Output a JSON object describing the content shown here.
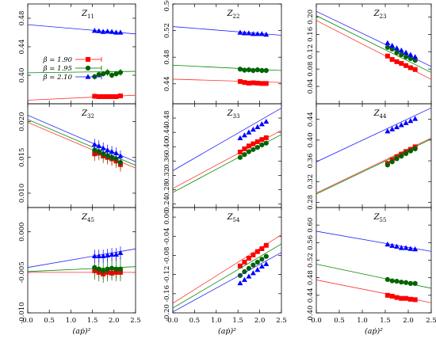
{
  "figure": {
    "xlabel": "(aṗ)²",
    "legend": [
      "β = 1.90",
      "β = 1.95",
      "β = 2.10"
    ]
  },
  "colors": {
    "b190": "#ff0000",
    "b195": "#006400",
    "b210": "#0000ff",
    "fit190": "#ff3030",
    "fit195": "#008800",
    "fit210": "#2020ff"
  },
  "chart_data": [
    {
      "type": "scatter",
      "title": "Z11",
      "title_main": "Z",
      "title_sub": "11",
      "xlim": [
        0,
        2.5
      ],
      "ylim": [
        0.36,
        0.5
      ],
      "xticks": [
        "0.0",
        "0.5",
        "1.0",
        "1.5",
        "2.0",
        "2.5"
      ],
      "xtick_values": [
        0,
        0.5,
        1,
        1.5,
        2,
        2.5
      ],
      "yticks": [
        "0.40",
        "0.44",
        "0.48"
      ],
      "ytick_values": [
        0.4,
        0.44,
        0.48
      ],
      "x": [
        1.55,
        1.65,
        1.75,
        1.85,
        1.95,
        2.05,
        2.15
      ],
      "series": [
        {
          "name": "β = 1.90",
          "values": [
            0.3705,
            0.37,
            0.37,
            0.37,
            0.37,
            0.37,
            0.371
          ],
          "errors": [
            0.002,
            0.002,
            0.002,
            0.002,
            0.002,
            0.002,
            0.003
          ],
          "fit": [
            0.365,
            0.372
          ]
        },
        {
          "name": "β = 1.95",
          "values": [
            0.398,
            0.401,
            0.402,
            0.404,
            0.4,
            0.402,
            0.404
          ],
          "errors": [
            0.004,
            0.004,
            0.004,
            0.005,
            0.004,
            0.004,
            0.005
          ],
          "fit": [
            0.4035,
            0.4055
          ]
        },
        {
          "name": "β = 2.10",
          "values": [
            0.4625,
            0.462,
            0.461,
            0.4615,
            0.461,
            0.46,
            0.46
          ],
          "errors": [
            0.003,
            0.003,
            0.003,
            0.003,
            0.003,
            0.003,
            0.003
          ],
          "fit": [
            0.471,
            0.458
          ]
        }
      ]
    },
    {
      "type": "scatter",
      "title": "Z22",
      "title_main": "Z",
      "title_sub": "22",
      "xlim": [
        0,
        2.5
      ],
      "ylim": [
        0.41,
        0.56
      ],
      "xticks": [
        "0.0",
        "0.5",
        "1.0",
        "1.5",
        "2.0",
        "2.5"
      ],
      "xtick_values": [
        0,
        0.5,
        1,
        1.5,
        2,
        2.5
      ],
      "yticks": [
        "0.44",
        "0.48",
        "0.52",
        "0.56"
      ],
      "ytick_values": [
        0.44,
        0.48,
        0.52,
        0.56
      ],
      "x": [
        1.55,
        1.65,
        1.75,
        1.85,
        1.95,
        2.05,
        2.15
      ],
      "series": [
        {
          "name": "β = 1.90",
          "values": [
            0.4435,
            0.442,
            0.441,
            0.4415,
            0.441,
            0.4405,
            0.4405
          ],
          "errors": [
            0.002,
            0.002,
            0.002,
            0.002,
            0.002,
            0.002,
            0.002
          ],
          "fit": [
            0.447,
            0.442
          ]
        },
        {
          "name": "β = 1.95",
          "values": [
            0.462,
            0.4605,
            0.461,
            0.46,
            0.461,
            0.46,
            0.46
          ],
          "errors": [
            0.004,
            0.004,
            0.004,
            0.004,
            0.004,
            0.004,
            0.004
          ],
          "fit": [
            0.468,
            0.46
          ]
        },
        {
          "name": "β = 2.10",
          "values": [
            0.517,
            0.516,
            0.516,
            0.515,
            0.515,
            0.515,
            0.514
          ],
          "errors": [
            0.003,
            0.003,
            0.003,
            0.003,
            0.003,
            0.003,
            0.003
          ],
          "fit": [
            0.526,
            0.513
          ]
        }
      ]
    },
    {
      "type": "scatter",
      "title": "Z23",
      "title_main": "Z",
      "title_sub": "23",
      "xlim": [
        0,
        2.5
      ],
      "ylim": [
        0.0,
        0.23
      ],
      "xticks": [
        "0.0",
        "0.5",
        "1.0",
        "1.5",
        "2.0",
        "2.5"
      ],
      "xtick_values": [
        0,
        0.5,
        1,
        1.5,
        2,
        2.5
      ],
      "yticks": [
        "0.04",
        "0.08",
        "0.12",
        "0.16",
        "0.20"
      ],
      "ytick_values": [
        0.04,
        0.08,
        0.12,
        0.16,
        0.2
      ],
      "x": [
        1.55,
        1.65,
        1.75,
        1.85,
        1.95,
        2.05,
        2.15
      ],
      "series": [
        {
          "name": "β = 1.90",
          "values": [
            0.11,
            0.102,
            0.097,
            0.093,
            0.088,
            0.083,
            0.079
          ],
          "errors": [
            0.003,
            0.003,
            0.003,
            0.003,
            0.003,
            0.003,
            0.003
          ],
          "fit": [
            0.192,
            0.056
          ]
        },
        {
          "name": "β = 1.95",
          "values": [
            0.13,
            0.126,
            0.118,
            0.113,
            0.108,
            0.104,
            0.1
          ],
          "errors": [
            0.004,
            0.004,
            0.004,
            0.004,
            0.004,
            0.004,
            0.004
          ],
          "fit": [
            0.203,
            0.072
          ]
        },
        {
          "name": "β = 2.10",
          "values": [
            0.14,
            0.134,
            0.128,
            0.123,
            0.118,
            0.113,
            0.108
          ],
          "errors": [
            0.003,
            0.003,
            0.003,
            0.003,
            0.003,
            0.003,
            0.003
          ],
          "fit": [
            0.213,
            0.086
          ]
        }
      ]
    },
    {
      "type": "scatter",
      "title": "Z32",
      "title_main": "Z",
      "title_sub": "32",
      "xlim": [
        0,
        2.5
      ],
      "ylim": [
        0.008,
        0.0225
      ],
      "xticks": [
        "0.0",
        "0.5",
        "1.0",
        "1.5",
        "2.0",
        "2.5"
      ],
      "xtick_values": [
        0,
        0.5,
        1,
        1.5,
        2,
        2.5
      ],
      "yticks": [
        "0.010",
        "0.015",
        "0.020"
      ],
      "ytick_values": [
        0.01,
        0.015,
        0.02
      ],
      "x": [
        1.55,
        1.65,
        1.75,
        1.85,
        1.95,
        2.05,
        2.15
      ],
      "series": [
        {
          "name": "β = 1.90",
          "values": [
            0.0155,
            0.0156,
            0.0152,
            0.015,
            0.0148,
            0.0145,
            0.014
          ],
          "errors": [
            0.001,
            0.001,
            0.001,
            0.001,
            0.001,
            0.001,
            0.001
          ],
          "fit": [
            0.0199,
            0.0135
          ]
        },
        {
          "name": "β = 1.95",
          "values": [
            0.016,
            0.0158,
            0.0155,
            0.0152,
            0.015,
            0.0148,
            0.0143
          ],
          "errors": [
            0.001,
            0.001,
            0.001,
            0.001,
            0.001,
            0.001,
            0.001
          ],
          "fit": [
            0.0203,
            0.0139
          ]
        },
        {
          "name": "β = 2.10",
          "values": [
            0.0168,
            0.0166,
            0.0163,
            0.016,
            0.0158,
            0.0156,
            0.0152
          ],
          "errors": [
            0.0008,
            0.0008,
            0.0008,
            0.0008,
            0.0008,
            0.0008,
            0.0008
          ],
          "fit": [
            0.0209,
            0.0144
          ]
        }
      ]
    },
    {
      "type": "scatter",
      "title": "Z33",
      "title_main": "Z",
      "title_sub": "33",
      "xlim": [
        0,
        2.5
      ],
      "ylim": [
        0.23,
        0.52
      ],
      "xticks": [
        "0.0",
        "0.5",
        "1.0",
        "1.5",
        "2.0",
        "2.5"
      ],
      "xtick_values": [
        0,
        0.5,
        1,
        1.5,
        2,
        2.5
      ],
      "yticks": [
        "0.24",
        "0.28",
        "0.32",
        "0.36",
        "0.40",
        "0.44",
        "0.48"
      ],
      "ytick_values": [
        0.24,
        0.28,
        0.32,
        0.36,
        0.4,
        0.44,
        0.48
      ],
      "x": [
        1.55,
        1.65,
        1.75,
        1.85,
        1.95,
        2.05,
        2.15
      ],
      "series": [
        {
          "name": "β = 1.90",
          "values": [
            0.385,
            0.394,
            0.402,
            0.408,
            0.414,
            0.42,
            0.425
          ],
          "errors": [
            0.004,
            0.004,
            0.004,
            0.004,
            0.004,
            0.004,
            0.004
          ],
          "fit": [
            0.283,
            0.446
          ]
        },
        {
          "name": "β = 1.95",
          "values": [
            0.37,
            0.378,
            0.386,
            0.392,
            0.398,
            0.405,
            0.41
          ],
          "errors": [
            0.004,
            0.004,
            0.004,
            0.004,
            0.004,
            0.004,
            0.004
          ],
          "fit": [
            0.272,
            0.434
          ]
        },
        {
          "name": "β = 2.10",
          "values": [
            0.424,
            0.432,
            0.44,
            0.448,
            0.455,
            0.463,
            0.47
          ],
          "errors": [
            0.004,
            0.004,
            0.004,
            0.004,
            0.004,
            0.004,
            0.004
          ],
          "fit": [
            0.333,
            0.508
          ]
        }
      ]
    },
    {
      "type": "scatter",
      "title": "Z44",
      "title_main": "Z",
      "title_sub": "44",
      "xlim": [
        0,
        2.5
      ],
      "ylim": [
        0.27,
        0.47
      ],
      "xticks": [
        "0.0",
        "0.5",
        "1.0",
        "1.5",
        "2.0",
        "2.5"
      ],
      "xtick_values": [
        0,
        0.5,
        1,
        1.5,
        2,
        2.5
      ],
      "yticks": [
        "0.28",
        "0.32",
        "0.36",
        "0.40",
        "0.44"
      ],
      "ytick_values": [
        0.28,
        0.32,
        0.36,
        0.4,
        0.44
      ],
      "x": [
        1.55,
        1.65,
        1.75,
        1.85,
        1.95,
        2.05,
        2.15
      ],
      "series": [
        {
          "name": "β = 1.90",
          "values": [
            0.355,
            0.362,
            0.368,
            0.373,
            0.378,
            0.382,
            0.387
          ],
          "errors": [
            0.003,
            0.003,
            0.003,
            0.003,
            0.003,
            0.003,
            0.003
          ],
          "fit": [
            0.298,
            0.404
          ]
        },
        {
          "name": "β = 1.95",
          "values": [
            0.352,
            0.358,
            0.364,
            0.369,
            0.374,
            0.379,
            0.383
          ],
          "errors": [
            0.003,
            0.003,
            0.003,
            0.003,
            0.003,
            0.003,
            0.003
          ],
          "fit": [
            0.296,
            0.402
          ]
        },
        {
          "name": "β = 2.10",
          "values": [
            0.417,
            0.421,
            0.425,
            0.429,
            0.433,
            0.437,
            0.441
          ],
          "errors": [
            0.003,
            0.003,
            0.003,
            0.003,
            0.003,
            0.003,
            0.003
          ],
          "fit": [
            0.358,
            0.462
          ]
        }
      ]
    },
    {
      "type": "scatter",
      "title": "Z45",
      "title_main": "Z",
      "title_sub": "45",
      "xlim": [
        0,
        2.5
      ],
      "ylim": [
        -0.01,
        0.003
      ],
      "xticks": [
        "0.0",
        "0.5",
        "1.0",
        "1.5",
        "2.0",
        "2.5"
      ],
      "xtick_values": [
        0,
        0.5,
        1,
        1.5,
        2,
        2.5
      ],
      "yticks": [
        "-0.010",
        "-0.005",
        "0.000"
      ],
      "ytick_values": [
        -0.01,
        -0.005,
        0.0
      ],
      "x": [
        1.55,
        1.65,
        1.75,
        1.85,
        1.95,
        2.05,
        2.15
      ],
      "series": [
        {
          "name": "β = 1.90",
          "values": [
            -0.0048,
            -0.005,
            -0.0052,
            -0.005,
            -0.0051,
            -0.005,
            -0.005
          ],
          "errors": [
            0.0007,
            0.0007,
            0.0007,
            0.0007,
            0.0007,
            0.0007,
            0.0007
          ],
          "fit": [
            -0.005,
            -0.005
          ]
        },
        {
          "name": "β = 1.95",
          "values": [
            -0.0044,
            -0.0046,
            -0.0048,
            -0.0046,
            -0.0045,
            -0.0046,
            -0.0046
          ],
          "errors": [
            0.0015,
            0.0015,
            0.0015,
            0.0015,
            0.0015,
            0.0015,
            0.0015
          ],
          "fit": [
            -0.0049,
            -0.0043
          ]
        },
        {
          "name": "β = 2.10",
          "values": [
            -0.003,
            -0.003,
            -0.003,
            -0.0029,
            -0.0028,
            -0.0028,
            -0.0026
          ],
          "errors": [
            0.0008,
            0.0008,
            0.0008,
            0.0008,
            0.0008,
            0.0008,
            0.0008
          ],
          "fit": [
            -0.0044,
            -0.0021
          ]
        }
      ]
    },
    {
      "type": "scatter",
      "title": "Z54",
      "title_main": "Z",
      "title_sub": "54",
      "xlim": [
        0,
        2.5
      ],
      "ylim": [
        -0.2,
        0.02
      ],
      "xticks": [
        "0.0",
        "0.5",
        "1.0",
        "1.5",
        "2.0",
        "2.5"
      ],
      "xtick_values": [
        0,
        0.5,
        1,
        1.5,
        2,
        2.5
      ],
      "yticks": [
        "-0.20",
        "-0.16",
        "-0.12",
        "-0.08",
        "-0.04",
        "0.00"
      ],
      "ytick_values": [
        -0.2,
        -0.16,
        -0.12,
        -0.08,
        -0.04,
        0.0
      ],
      "x": [
        1.55,
        1.65,
        1.75,
        1.85,
        1.95,
        2.05,
        2.15
      ],
      "series": [
        {
          "name": "β = 1.90",
          "values": [
            -0.102,
            -0.094,
            -0.086,
            -0.079,
            -0.072,
            -0.066,
            -0.059
          ],
          "errors": [
            0.003,
            0.003,
            0.003,
            0.003,
            0.003,
            0.003,
            0.003
          ],
          "fit": [
            -0.18,
            -0.037
          ]
        },
        {
          "name": "β = 1.95",
          "values": [
            -0.122,
            -0.114,
            -0.107,
            -0.1,
            -0.094,
            -0.088,
            -0.082
          ],
          "errors": [
            0.003,
            0.003,
            0.003,
            0.003,
            0.003,
            0.003,
            0.003
          ],
          "fit": [
            -0.19,
            -0.056
          ]
        },
        {
          "name": "β = 2.10",
          "values": [
            -0.138,
            -0.131,
            -0.124,
            -0.117,
            -0.11,
            -0.103,
            -0.098
          ],
          "errors": [
            0.003,
            0.003,
            0.003,
            0.003,
            0.003,
            0.003,
            0.003
          ],
          "fit": [
            -0.198,
            -0.074
          ]
        }
      ]
    },
    {
      "type": "scatter",
      "title": "Z55",
      "title_main": "Z",
      "title_sub": "55",
      "xlim": [
        0,
        2.5
      ],
      "ylim": [
        0.4,
        0.64
      ],
      "xticks": [
        "0.0",
        "0.5",
        "1.0",
        "1.5",
        "2.0",
        "2.5"
      ],
      "xtick_values": [
        0,
        0.5,
        1,
        1.5,
        2,
        2.5
      ],
      "yticks": [
        "0.40",
        "0.44",
        "0.48",
        "0.52",
        "0.56",
        "0.60"
      ],
      "ytick_values": [
        0.4,
        0.44,
        0.48,
        0.52,
        0.56,
        0.6
      ],
      "x": [
        1.55,
        1.65,
        1.75,
        1.85,
        1.95,
        2.05,
        2.15
      ],
      "series": [
        {
          "name": "β = 1.90",
          "values": [
            0.44,
            0.438,
            0.435,
            0.433,
            0.433,
            0.431,
            0.43
          ],
          "errors": [
            0.003,
            0.003,
            0.003,
            0.003,
            0.003,
            0.003,
            0.003
          ],
          "fit": [
            0.475,
            0.423
          ]
        },
        {
          "name": "β = 1.95",
          "values": [
            0.476,
            0.473,
            0.472,
            0.47,
            0.469,
            0.467,
            0.467
          ],
          "errors": [
            0.005,
            0.005,
            0.005,
            0.005,
            0.005,
            0.005,
            0.005
          ],
          "fit": [
            0.511,
            0.456
          ]
        },
        {
          "name": "β = 2.10",
          "values": [
            0.556,
            0.553,
            0.551,
            0.548,
            0.548,
            0.546,
            0.545
          ],
          "errors": [
            0.005,
            0.005,
            0.005,
            0.005,
            0.005,
            0.005,
            0.005
          ],
          "fit": [
            0.586,
            0.54
          ]
        }
      ]
    }
  ]
}
